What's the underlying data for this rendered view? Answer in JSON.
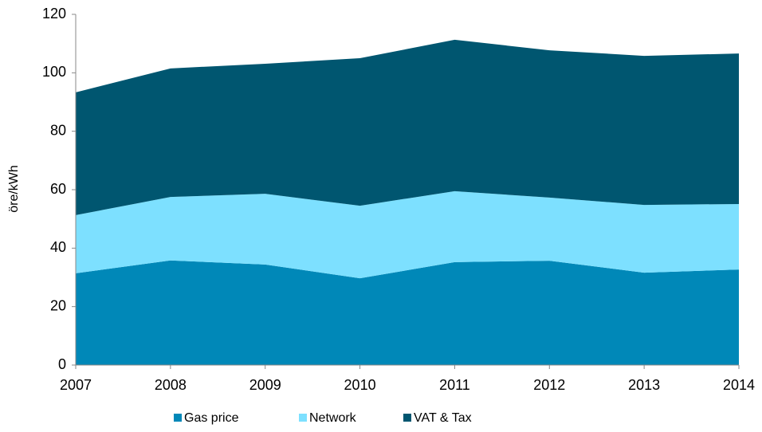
{
  "chart_data": {
    "type": "stacked_area",
    "y_label": "öre/kWh",
    "categories": [
      "2007",
      "2008",
      "2009",
      "2010",
      "2011",
      "2012",
      "2013",
      "2014"
    ],
    "series": [
      {
        "name": "Gas price",
        "color": "#0088b8",
        "values": [
          31.4,
          35.8,
          34.4,
          29.7,
          35.2,
          35.7,
          31.6,
          32.7
        ]
      },
      {
        "name": "Network",
        "color": "#7de0ff",
        "values": [
          19.9,
          21.7,
          24.2,
          24.8,
          24.3,
          21.6,
          23.2,
          22.4
        ]
      },
      {
        "name": "VAT & Tax",
        "color": "#005670",
        "values": [
          42,
          44,
          44.5,
          50.5,
          51.8,
          50.4,
          51,
          51.5
        ]
      }
    ],
    "ylim": [
      0,
      120
    ],
    "yticks": [
      0,
      20,
      40,
      60,
      80,
      100,
      120
    ],
    "legend": "bottom"
  }
}
